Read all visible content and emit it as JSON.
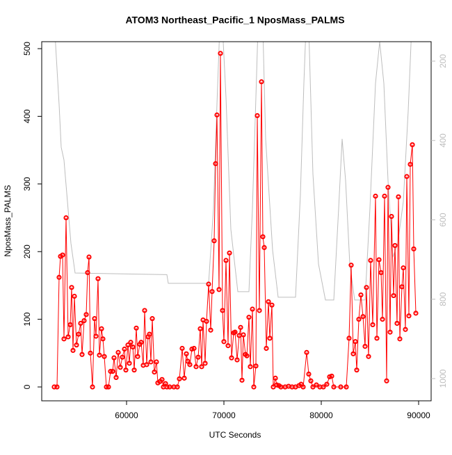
{
  "chart_data": {
    "type": "line",
    "title": "ATOM3 Northeast_Pacific_1 NposMass_PALMS",
    "x_label": "UTC Seconds",
    "y_label": "NposMass_PALMS",
    "xlim": [
      51286,
      91286
    ],
    "xticks": [
      60000,
      70000,
      80000,
      90000
    ],
    "ylim": [
      -20.5,
      510.3
    ],
    "yticks": [
      0,
      100,
      200,
      300,
      400,
      500
    ],
    "y2lim": [
      1056,
      151
    ],
    "y2ticks": [
      200,
      400,
      600,
      800,
      1000
    ],
    "series": [
      {
        "color": "#ff0000",
        "markers": true,
        "x": [
          52571,
          52857,
          53071,
          53214,
          53429,
          53571,
          53786,
          54000,
          54214,
          54357,
          54500,
          54643,
          54857,
          55071,
          55286,
          55429,
          55643,
          55857,
          56000,
          56143,
          56286,
          56500,
          56714,
          56857,
          57071,
          57214,
          57429,
          57571,
          57714,
          57929,
          58143,
          58357,
          58571,
          58714,
          58929,
          59143,
          59357,
          59571,
          59786,
          59929,
          60143,
          60286,
          60429,
          60643,
          60786,
          61000,
          61143,
          61357,
          61500,
          61714,
          61857,
          62071,
          62214,
          62357,
          62500,
          62643,
          62857,
          63071,
          63214,
          63429,
          63643,
          63786,
          64000,
          64143,
          64429,
          64857,
          65214,
          65429,
          65714,
          65929,
          66143,
          66286,
          66500,
          66714,
          66929,
          67143,
          67357,
          67571,
          67714,
          67857,
          68071,
          68214,
          68429,
          68643,
          68786,
          69000,
          69143,
          69286,
          69500,
          69643,
          69857,
          70000,
          70214,
          70429,
          70571,
          70786,
          71000,
          71143,
          71357,
          71571,
          71714,
          71857,
          72000,
          72214,
          72357,
          72571,
          72714,
          72929,
          73071,
          73286,
          73429,
          73643,
          73857,
          74000,
          74143,
          74357,
          74571,
          74714,
          74929,
          75071,
          75286,
          75429,
          75643,
          75857,
          76286,
          76643,
          77000,
          77357,
          77714,
          77929,
          78143,
          78500,
          78714,
          78929,
          79143,
          79500,
          79857,
          80214,
          80571,
          80857,
          81071,
          81286,
          82000,
          82571,
          82857,
          83071,
          83286,
          83500,
          83643,
          83857,
          84071,
          84286,
          84500,
          84643,
          84857,
          85071,
          85286,
          85571,
          85714,
          85929,
          86143,
          86286,
          86500,
          86714,
          86857,
          87071,
          87214,
          87429,
          87571,
          87786,
          87929,
          88071,
          88286,
          88429,
          88643,
          88786,
          89000,
          89143,
          89357,
          89500,
          89714
        ],
        "values": [
          0,
          0,
          162,
          193,
          195,
          71,
          250,
          74,
          92,
          147,
          54,
          134,
          62,
          78,
          94,
          48,
          98,
          107,
          169,
          192,
          50,
          0,
          101,
          75,
          160,
          47,
          86,
          71,
          45,
          0,
          0,
          23,
          23,
          43,
          14,
          51,
          29,
          44,
          56,
          25,
          62,
          35,
          66,
          59,
          25,
          87,
          45,
          63,
          66,
          32,
          113,
          33,
          74,
          78,
          37,
          101,
          22,
          37,
          6,
          8,
          11,
          0,
          5,
          0,
          0,
          0,
          0,
          12,
          57,
          13,
          49,
          38,
          33,
          56,
          57,
          30,
          44,
          86,
          30,
          99,
          35,
          97,
          152,
          84,
          141,
          216,
          330,
          402,
          144,
          493,
          113,
          67,
          187,
          61,
          198,
          43,
          80,
          81,
          40,
          76,
          88,
          10,
          77,
          48,
          46,
          103,
          30,
          115,
          0,
          31,
          401,
          113,
          451,
          222,
          206,
          57,
          126,
          72,
          121,
          0,
          13,
          3,
          2,
          0,
          0,
          1,
          0,
          0,
          2,
          4,
          0,
          51,
          19,
          9,
          0,
          3,
          0,
          0,
          4,
          15,
          16,
          0,
          0,
          0,
          72,
          180,
          49,
          67,
          25,
          100,
          136,
          104,
          60,
          147,
          45,
          187,
          92,
          282,
          72,
          188,
          169,
          100,
          282,
          9,
          295,
          81,
          252,
          135,
          209,
          94,
          281,
          71,
          148,
          176,
          85,
          311,
          105,
          329,
          358,
          204,
          109
        ]
      },
      {
        "color": "#bdbdbd",
        "axis": "y2",
        "x": [
          52571,
          53071,
          53286,
          53571,
          53929,
          54286,
          54714,
          64143,
          64286,
          68429,
          68929,
          69286,
          69571,
          69857,
          70214,
          70714,
          71429,
          72571,
          72929,
          73286,
          73500,
          74000,
          74286,
          75000,
          75571,
          77357,
          77857,
          78214,
          78429,
          78714,
          79143,
          79714,
          80429,
          81286,
          81786,
          82143,
          82500,
          82929,
          83429,
          84500,
          85000,
          85571,
          86000,
          86429,
          86857,
          87357,
          87857,
          88429,
          88929,
          89286
        ],
        "values": [
          100,
          309,
          417,
          449,
          554,
          659,
          734,
          738,
          760,
          760,
          571,
          309,
          116,
          116,
          291,
          624,
          781,
          781,
          571,
          291,
          116,
          116,
          396,
          676,
          795,
          795,
          536,
          256,
          116,
          116,
          484,
          711,
          802,
          802,
          571,
          396,
          501,
          711,
          802,
          802,
          571,
          256,
          151,
          256,
          501,
          694,
          659,
          554,
          326,
          116
        ]
      }
    ]
  }
}
